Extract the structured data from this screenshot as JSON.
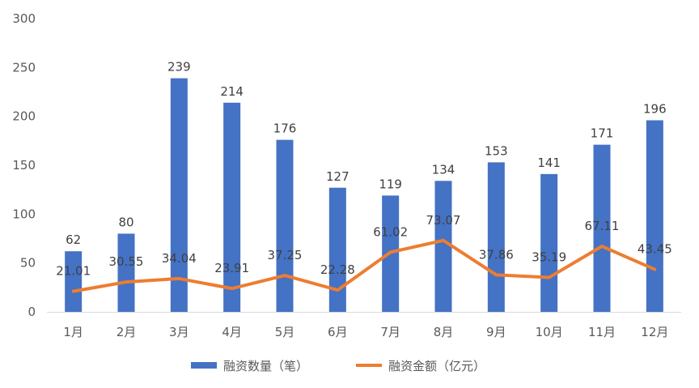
{
  "chart_data": {
    "type": "bar",
    "categories": [
      "1月",
      "2月",
      "3月",
      "4月",
      "5月",
      "6月",
      "7月",
      "8月",
      "9月",
      "10月",
      "11月",
      "12月"
    ],
    "series": [
      {
        "name": "融资数量（笔）",
        "type": "bar",
        "color": "#4472C4",
        "values": [
          62,
          80,
          239,
          214,
          176,
          127,
          119,
          134,
          153,
          141,
          171,
          196
        ],
        "labels": [
          "62",
          "80",
          "239",
          "214",
          "176",
          "127",
          "119",
          "134",
          "153",
          "141",
          "171",
          "196"
        ]
      },
      {
        "name": "融资金额（亿元）",
        "type": "line",
        "color": "#ED7D31",
        "values": [
          21.01,
          30.55,
          34.04,
          23.91,
          37.25,
          22.28,
          61.02,
          73.07,
          37.86,
          35.19,
          67.11,
          43.45
        ],
        "labels": [
          "21.01",
          "30.55",
          "34.04",
          "23.91",
          "37.25",
          "22.28",
          "61.02",
          "73.07",
          "37.86",
          "35.19",
          "67.11",
          "43.45"
        ]
      }
    ],
    "y_ticks": [
      "0",
      "50",
      "100",
      "150",
      "200",
      "250",
      "300"
    ],
    "ylim": [
      0,
      300
    ],
    "grid": false,
    "legend_position": "bottom"
  }
}
